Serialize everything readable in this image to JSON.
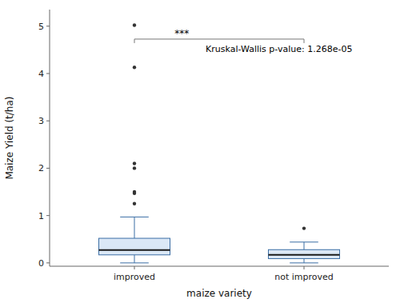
{
  "chart_data": {
    "type": "box",
    "xlabel": "maize variety",
    "ylabel": "Maize Yield (t/ha)",
    "categories": [
      "improved",
      "not improved"
    ],
    "ylim": [
      -0.07,
      5.35
    ],
    "yticks": [
      0,
      1,
      2,
      3,
      4,
      5
    ],
    "grid": false,
    "boxes": [
      {
        "q1": 0.17,
        "median": 0.27,
        "q3": 0.52,
        "whisker_low": 0.0,
        "whisker_high": 0.97,
        "outliers": [
          1.25,
          1.47,
          1.5,
          2.0,
          2.1,
          4.13,
          5.02
        ]
      },
      {
        "q1": 0.09,
        "median": 0.17,
        "q3": 0.28,
        "whisker_low": 0.0,
        "whisker_high": 0.44,
        "outliers": [
          0.73
        ]
      }
    ],
    "significance_text": "***",
    "annotation": "Kruskal-Wallis p-value: 1.268e-05"
  }
}
